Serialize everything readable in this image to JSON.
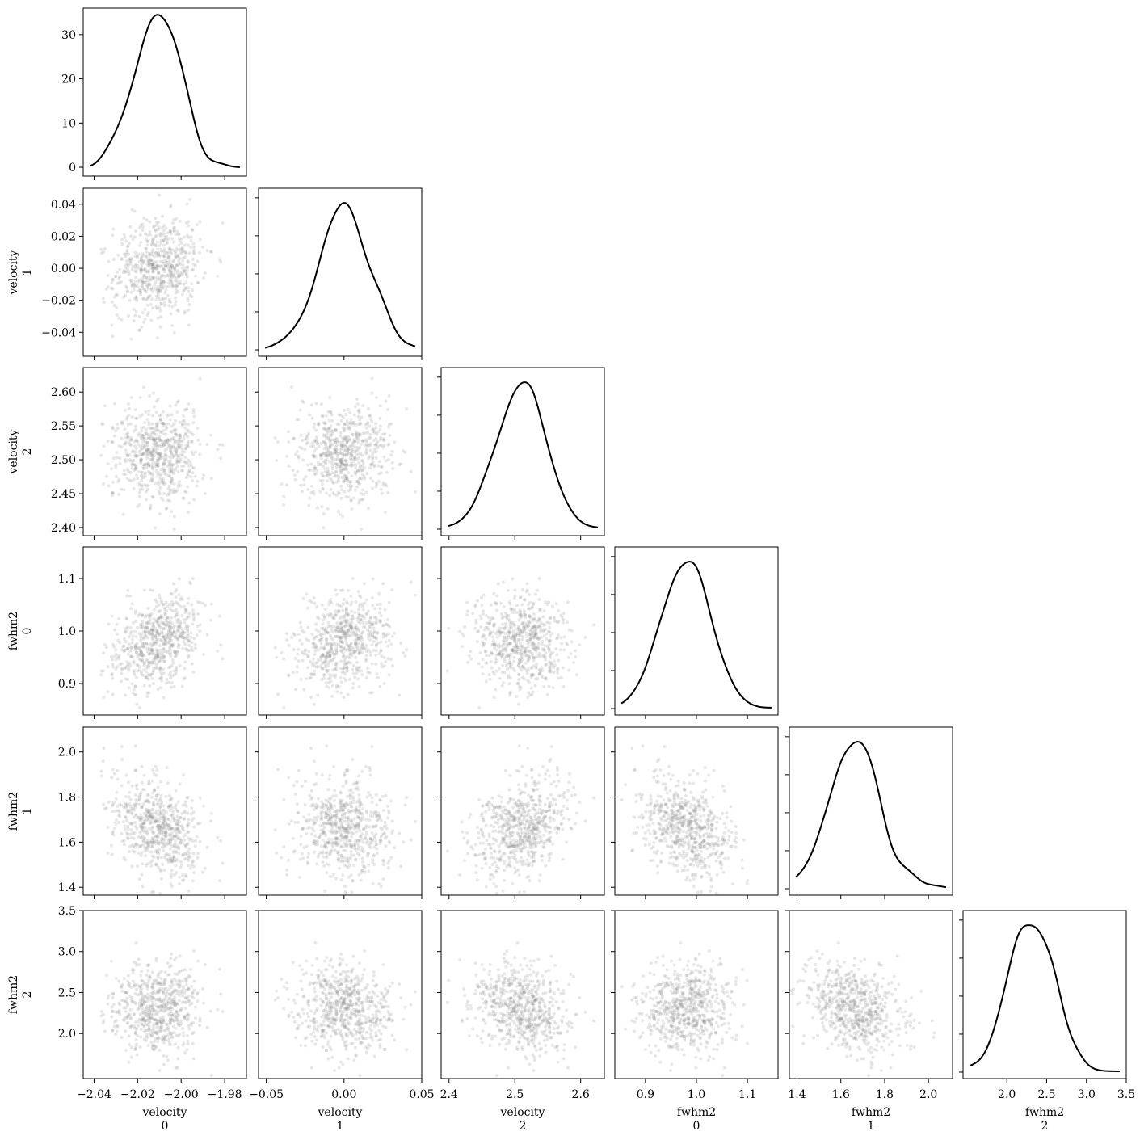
{
  "chart_data": {
    "type": "corner",
    "variables": [
      {
        "label": "velocity",
        "sub": "0",
        "range": [
          -2.045,
          -1.97
        ],
        "ticks": [
          -2.04,
          -2.02,
          -2.0,
          -1.98
        ],
        "tick_labels": [
          "−2.04",
          "−2.02",
          "−2.00",
          "−1.98"
        ],
        "mean": -2.011,
        "sd": 0.01
      },
      {
        "label": "velocity",
        "sub": "1",
        "range": [
          -0.055,
          0.05
        ],
        "ticks": [
          -0.04,
          -0.02,
          0.0,
          0.02,
          0.04
        ],
        "tick_labels": [
          "−0.04",
          "−0.02",
          "0.00",
          "0.02",
          "0.04"
        ],
        "x_tick_labels": [
          "−0.05",
          "0.00",
          "0.05"
        ],
        "x_ticks": [
          -0.05,
          0.0,
          0.05
        ],
        "mean": 0.0,
        "sd": 0.016
      },
      {
        "label": "velocity",
        "sub": "2",
        "range": [
          2.388,
          2.636
        ],
        "ticks": [
          2.4,
          2.45,
          2.5,
          2.55,
          2.6
        ],
        "tick_labels": [
          "2.40",
          "2.45",
          "2.50",
          "2.55",
          "2.60"
        ],
        "x_ticks": [
          2.4,
          2.5,
          2.6
        ],
        "x_tick_labels": [
          "2.4",
          "2.5",
          "2.6"
        ],
        "mean": 2.51,
        "sd": 0.035
      },
      {
        "label": "fwhm2",
        "sub": "0",
        "range": [
          0.84,
          1.16
        ],
        "ticks": [
          0.9,
          1.0,
          1.1
        ],
        "tick_labels": [
          "0.9",
          "1.0",
          "1.1"
        ],
        "x_ticks": [
          0.9,
          1.0,
          1.1
        ],
        "x_tick_labels": [
          "0.9",
          "1.0",
          "1.1"
        ],
        "mean": 0.98,
        "sd": 0.048
      },
      {
        "label": "fwhm2",
        "sub": "1",
        "range": [
          1.365,
          2.11
        ],
        "ticks": [
          1.4,
          1.6,
          1.8,
          2.0
        ],
        "tick_labels": [
          "1.4",
          "1.6",
          "1.8",
          "2.0"
        ],
        "x_ticks": [
          1.4,
          1.6,
          1.8,
          2.0
        ],
        "x_tick_labels": [
          "1.4",
          "1.6",
          "1.8",
          "2.0"
        ],
        "mean": 1.67,
        "sd": 0.11
      },
      {
        "label": "fwhm2",
        "sub": "2",
        "range": [
          1.45,
          3.5
        ],
        "ticks": [
          2.0,
          2.5,
          3.0,
          3.5
        ],
        "tick_labels": [
          "2.0",
          "2.5",
          "3.0",
          "3.5"
        ],
        "x_ticks": [
          2.0,
          2.5,
          3.0,
          3.5
        ],
        "x_tick_labels": [
          "2.0",
          "2.5",
          "3.0",
          "3.5"
        ],
        "mean": 2.3,
        "sd": 0.27
      }
    ],
    "diagonal": {
      "kind": "kde",
      "first_y_axis": {
        "range": [
          -2,
          36
        ],
        "ticks": [
          0,
          10,
          20,
          30
        ],
        "tick_labels": [
          "0",
          "10",
          "20",
          "30"
        ]
      }
    },
    "correlations": [
      [
        1,
        0.15,
        -0.05,
        0.3,
        -0.35,
        0.05
      ],
      [
        0.15,
        1,
        0.05,
        0.2,
        -0.05,
        -0.1
      ],
      [
        -0.05,
        0.05,
        1,
        -0.15,
        0.3,
        -0.2
      ],
      [
        0.3,
        0.2,
        -0.15,
        1,
        -0.35,
        0.05
      ],
      [
        -0.35,
        -0.05,
        0.3,
        -0.35,
        1,
        -0.35
      ],
      [
        0.05,
        -0.1,
        -0.2,
        0.05,
        -0.35,
        1
      ]
    ],
    "n_samples": 650,
    "point_color": "#888888",
    "line_color": "#000000"
  }
}
